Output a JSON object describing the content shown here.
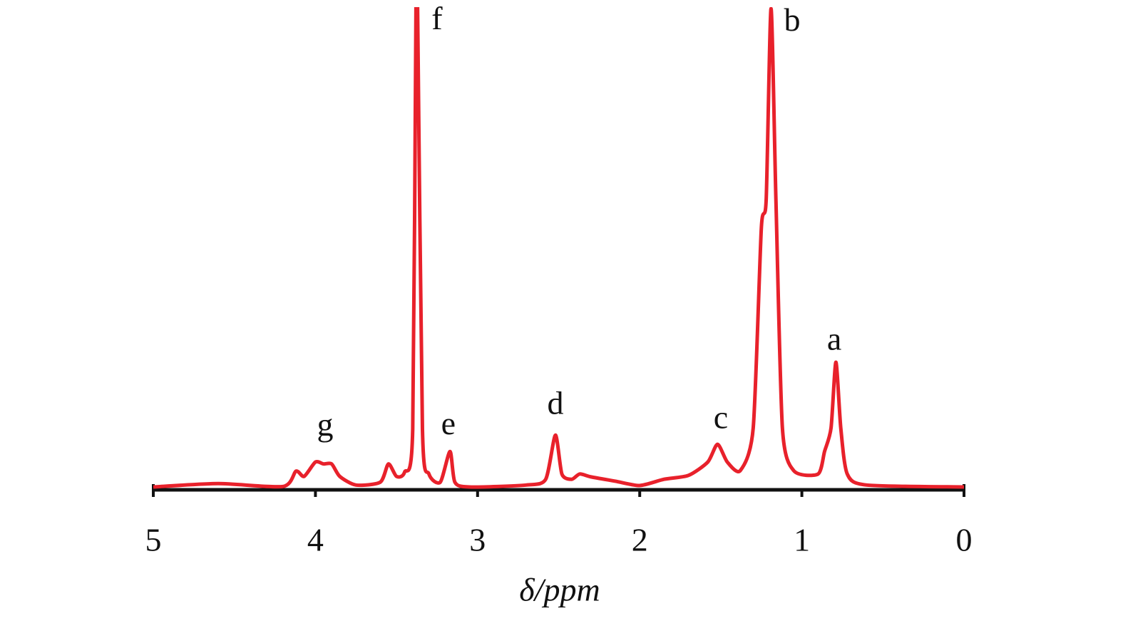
{
  "chart_data": {
    "type": "line",
    "xlabel": "δ/ppm",
    "x": [
      5,
      4.6,
      4.2,
      4.12,
      4.07,
      4.0,
      3.95,
      3.9,
      3.85,
      3.75,
      3.6,
      3.55,
      3.5,
      3.45,
      3.4,
      3.38,
      3.37,
      3.34,
      3.3,
      3.23,
      3.17,
      3.14,
      3.05,
      2.7,
      2.58,
      2.52,
      2.48,
      2.42,
      2.37,
      2.3,
      2.15,
      2.0,
      1.85,
      1.7,
      1.58,
      1.52,
      1.46,
      1.38,
      1.3,
      1.25,
      1.22,
      1.19,
      1.16,
      1.12,
      1.05,
      0.9,
      0.86,
      0.82,
      0.79,
      0.76,
      0.72,
      0.6,
      0
    ],
    "series": [
      {
        "color": "#e8212b",
        "values": [
          0,
          0.7,
          0.1,
          3.3,
          2.2,
          5.2,
          4.8,
          4.8,
          2.2,
          0.4,
          1,
          4.8,
          2.2,
          3.1,
          12,
          100,
          100,
          12,
          2.7,
          1,
          7.4,
          1,
          0,
          0.4,
          1.6,
          10.8,
          2.7,
          1.6,
          2.7,
          2.1,
          1.2,
          0.3,
          1.6,
          2.4,
          5.2,
          8.9,
          5.2,
          3.4,
          12.3,
          53.9,
          59.9,
          99.7,
          59.9,
          12.3,
          3.4,
          2.7,
          7.4,
          12.3,
          26,
          12.3,
          2.7,
          0.4,
          0
        ]
      }
    ],
    "annotations": [
      {
        "text": "a",
        "x": 0.8,
        "y": 30.2
      },
      {
        "text": "b",
        "x": 1.06,
        "y": 96.7
      },
      {
        "text": "c",
        "x": 1.5,
        "y": 13.8
      },
      {
        "text": "d",
        "x": 2.52,
        "y": 16.8
      },
      {
        "text": "e",
        "x": 3.18,
        "y": 12.6
      },
      {
        "text": "f",
        "x": 3.25,
        "y": 97
      },
      {
        "text": "g",
        "x": 3.94,
        "y": 12.3
      }
    ],
    "xlim": [
      5,
      0
    ],
    "ylim": [
      0,
      100
    ],
    "xticks": [
      5,
      4,
      3,
      2,
      1,
      0
    ]
  }
}
